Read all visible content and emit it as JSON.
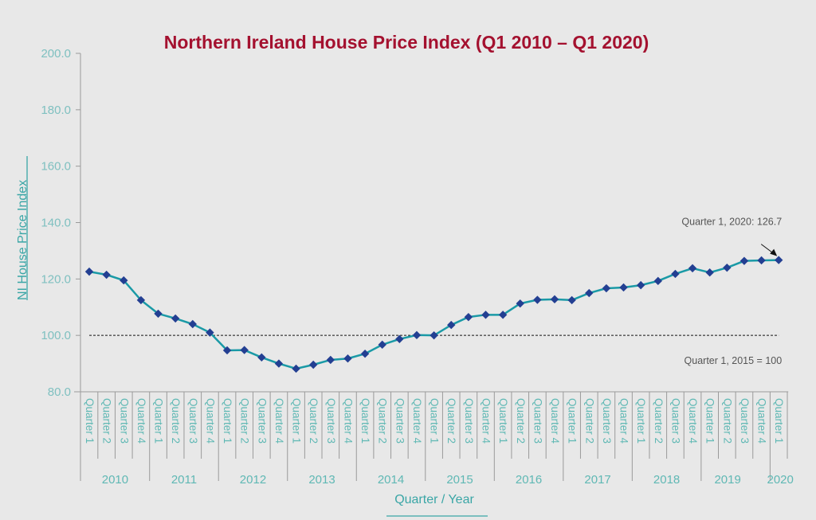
{
  "chart_data": {
    "type": "line",
    "title": "Northern Ireland House Price Index (Q1 2010 – Q1 2020)",
    "xlabel": "Quarter / Year",
    "ylabel": "NI House Price Index",
    "ylim": [
      80,
      200
    ],
    "yticks": [
      "80.0",
      "100.0",
      "120.0",
      "140.0",
      "160.0",
      "180.0",
      "200.0"
    ],
    "ytick_values": [
      80,
      100,
      120,
      140,
      160,
      180,
      200
    ],
    "years": [
      "2010",
      "2011",
      "2012",
      "2013",
      "2014",
      "2015",
      "2016",
      "2017",
      "2018",
      "2019",
      "2020"
    ],
    "quarter_labels": [
      "Quarter 1",
      "Quarter 2",
      "Quarter 3",
      "Quarter 4",
      "Quarter 1",
      "Quarter 2",
      "Quarter 3",
      "Quarter 4",
      "Quarter 1",
      "Quarter 2",
      "Quarter 3",
      "Quarter 4",
      "Quarter 1",
      "Quarter 2",
      "Quarter 3",
      "Quarter 4",
      "Quarter 1",
      "Quarter 2",
      "Quarter 3",
      "Quarter 4",
      "Quarter 1",
      "Quarter 2",
      "Quarter 3",
      "Quarter 4",
      "Quarter 1",
      "Quarter 2",
      "Quarter 3",
      "Quarter 4",
      "Quarter 1",
      "Quarter 2",
      "Quarter 3",
      "Quarter 4",
      "Quarter 1",
      "Quarter 2",
      "Quarter 3",
      "Quarter 4",
      "Quarter 1",
      "Quarter 2",
      "Quarter 3",
      "Quarter 4",
      "Quarter 1"
    ],
    "series": [
      {
        "name": "NI House Price Index",
        "color": "#1a9aa6",
        "marker_color": "#233f92",
        "values": [
          122.6,
          121.5,
          119.5,
          112.5,
          107.7,
          106.0,
          104.0,
          101.0,
          94.7,
          94.8,
          92.2,
          90.0,
          88.2,
          89.6,
          91.3,
          91.8,
          93.5,
          96.7,
          98.7,
          100.1,
          100.0,
          103.7,
          106.5,
          107.3,
          107.3,
          111.3,
          112.6,
          112.8,
          112.5,
          115.0,
          116.7,
          117.0,
          117.8,
          119.3,
          121.8,
          123.8,
          122.3,
          124.0,
          126.4,
          126.6,
          126.7
        ]
      }
    ],
    "reference_line": {
      "value": 100,
      "label": "Quarter 1, 2015 = 100",
      "style": "dashed",
      "color": "#111111"
    },
    "annotation": {
      "label": "Quarter 1, 2020: 126.7",
      "point_index": 40
    },
    "grid": false,
    "legend": "none"
  },
  "colors": {
    "background": "#e8e8e8",
    "title": "#a4112f",
    "axis_text": "#5fb8b4",
    "line": "#1a9aa6",
    "marker": "#233f92"
  }
}
